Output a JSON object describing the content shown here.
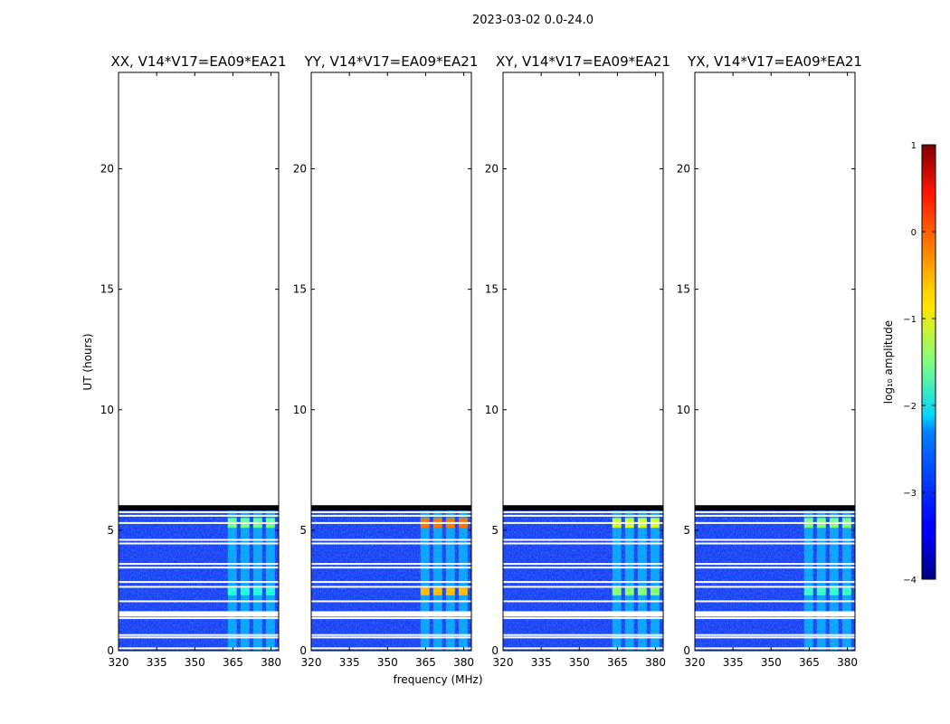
{
  "chart_data": {
    "type": "heatmap",
    "suptitle": "2023-03-02 0.0-24.0",
    "xlabel": "frequency (MHz)",
    "ylabel": "UT (hours)",
    "xlim": [
      320,
      383
    ],
    "ylim": [
      0,
      24
    ],
    "x_ticks": [
      320,
      335,
      350,
      365,
      380
    ],
    "y_ticks": [
      0,
      5,
      10,
      15,
      20
    ],
    "data_end_hour": 6.0,
    "flagged_hours": [
      0.1,
      0.55,
      0.65,
      1.35,
      1.45,
      1.6,
      2.05,
      2.65,
      2.85,
      3.45,
      3.6,
      4.45,
      4.6,
      5.3,
      5.6,
      5.75
    ],
    "rfi_channels_mhz": [
      [
        363,
        366.5
      ],
      [
        368,
        371.5
      ],
      [
        373,
        376.5
      ],
      [
        378,
        381.5
      ]
    ],
    "panels": [
      {
        "title": "XX, V14*V17=EA09*EA21",
        "strong_rfi_log_amp": -1.6,
        "rfi_window_hours": [
          [
            2.3,
            2.6
          ],
          [
            5.1,
            5.5
          ]
        ]
      },
      {
        "title": "YY, V14*V17=EA09*EA21",
        "strong_rfi_log_amp": -0.2,
        "rfi_window_hours": [
          [
            2.3,
            2.6
          ],
          [
            5.1,
            5.5
          ]
        ]
      },
      {
        "title": "XY, V14*V17=EA09*EA21",
        "strong_rfi_log_amp": -1.1,
        "rfi_window_hours": [
          [
            2.3,
            2.6
          ],
          [
            5.1,
            5.5
          ]
        ]
      },
      {
        "title": "YX, V14*V17=EA09*EA21",
        "strong_rfi_log_amp": -1.5,
        "rfi_window_hours": [
          [
            2.3,
            2.6
          ],
          [
            5.1,
            5.5
          ]
        ]
      }
    ],
    "colorbar": {
      "label": "log₁₀ amplitude",
      "range": [
        -4,
        1
      ],
      "ticks": [
        "1",
        "0",
        "−1",
        "−2",
        "−3",
        "−4"
      ],
      "colormap": "jet"
    }
  }
}
